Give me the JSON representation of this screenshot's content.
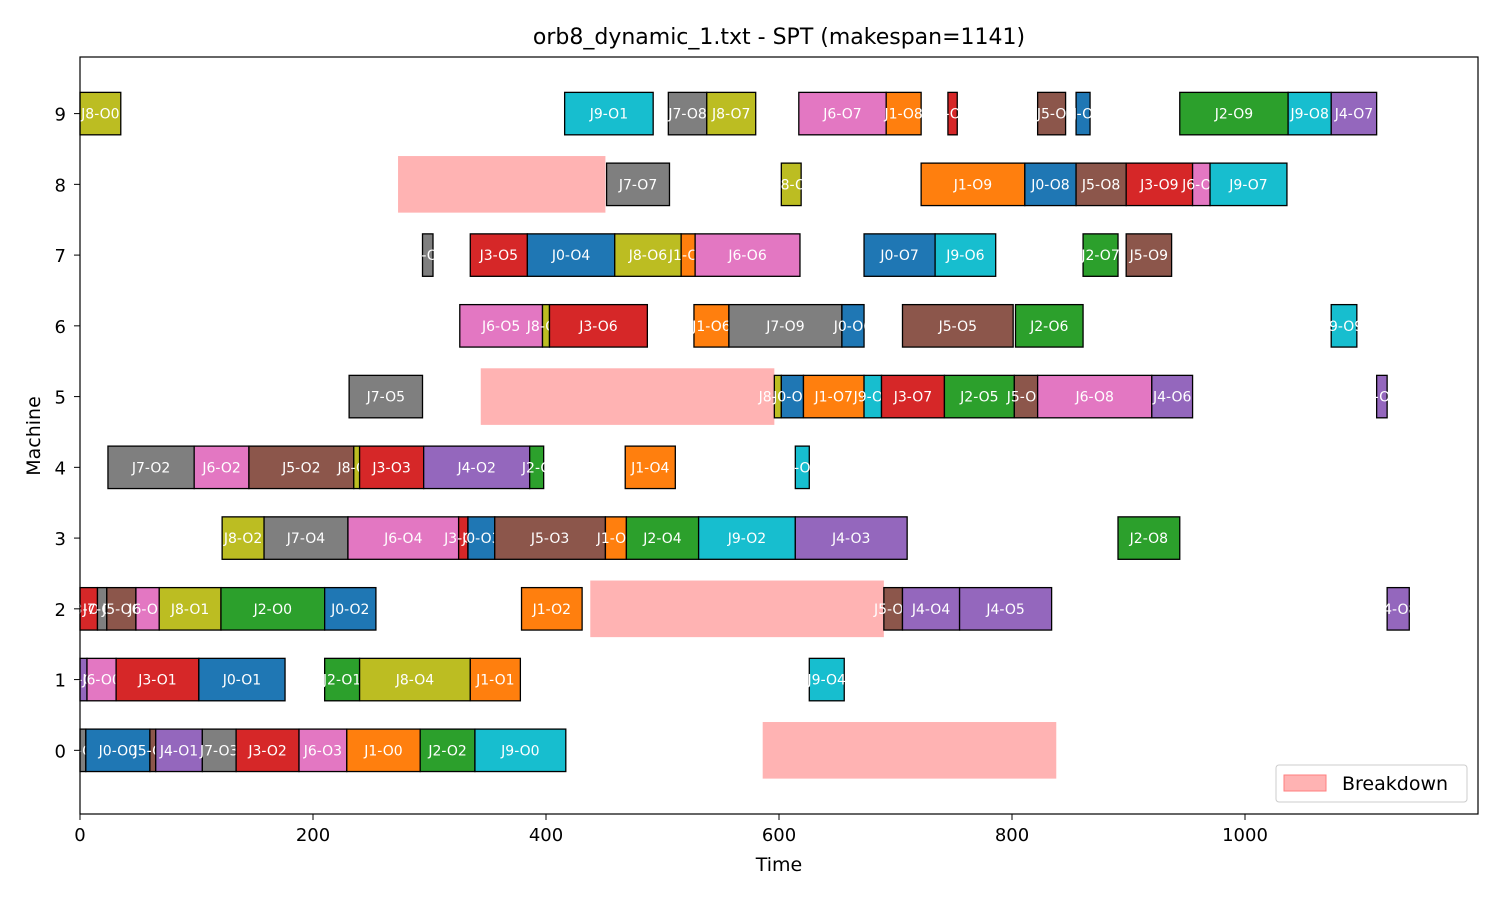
{
  "chart_data": {
    "type": "gantt",
    "title": "orb8_dynamic_1.txt - SPT (makespan=1141)",
    "xlabel": "Time",
    "ylabel": "Machine",
    "xlim": [
      0,
      1200
    ],
    "ylim": [
      -0.9,
      9.8
    ],
    "xticks": [
      0,
      200,
      400,
      600,
      800,
      1000
    ],
    "yticks": [
      0,
      1,
      2,
      3,
      4,
      5,
      6,
      7,
      8,
      9
    ],
    "legend": {
      "label": "Breakdown",
      "placement": "lower-right",
      "color": "#ffb3b3"
    },
    "job_colors": {
      "J0": "#1f77b4",
      "J1": "#ff7f0e",
      "J2": "#2ca02c",
      "J3": "#d62728",
      "J4": "#9467bd",
      "J5": "#8c564b",
      "J6": "#e377c2",
      "J7": "#7f7f7f",
      "J8": "#bcbd22",
      "J9": "#17becf"
    },
    "breakdowns": [
      {
        "machine": 8,
        "start": 273,
        "end": 451
      },
      {
        "machine": 5,
        "start": 344,
        "end": 596
      },
      {
        "machine": 2,
        "start": 438,
        "end": 690
      },
      {
        "machine": 0,
        "start": 586,
        "end": 838
      }
    ],
    "operations": [
      {
        "machine": 9,
        "job": "J8",
        "start": 0,
        "end": 35,
        "label": "J8-O0"
      },
      {
        "machine": 9,
        "job": "J9",
        "start": 416,
        "end": 492,
        "label": "J9-O1"
      },
      {
        "machine": 9,
        "job": "J7",
        "start": 505,
        "end": 538,
        "label": "J7-O8"
      },
      {
        "machine": 9,
        "job": "J8",
        "start": 538,
        "end": 580,
        "label": "J8-O7"
      },
      {
        "machine": 9,
        "job": "J6",
        "start": 617,
        "end": 692,
        "label": "J6-O7"
      },
      {
        "machine": 9,
        "job": "J1",
        "start": 692,
        "end": 722,
        "label": "J1-O8"
      },
      {
        "machine": 9,
        "job": "J3",
        "start": 745,
        "end": 753,
        "label": "-O"
      },
      {
        "machine": 9,
        "job": "J5",
        "start": 822,
        "end": 846,
        "label": "J5-O"
      },
      {
        "machine": 9,
        "job": "J0",
        "start": 855,
        "end": 867,
        "label": "J-O"
      },
      {
        "machine": 9,
        "job": "J2",
        "start": 944,
        "end": 1037,
        "label": "J2-O9"
      },
      {
        "machine": 9,
        "job": "J9",
        "start": 1037,
        "end": 1074,
        "label": "J9-O8"
      },
      {
        "machine": 9,
        "job": "J4",
        "start": 1074,
        "end": 1113,
        "label": "J4-O7"
      },
      {
        "machine": 8,
        "job": "J7",
        "start": 452,
        "end": 506,
        "label": "J7-O7"
      },
      {
        "machine": 8,
        "job": "J8",
        "start": 602,
        "end": 619,
        "label": "J8-O"
      },
      {
        "machine": 8,
        "job": "J1",
        "start": 722,
        "end": 811,
        "label": "J1-O9"
      },
      {
        "machine": 8,
        "job": "J0",
        "start": 811,
        "end": 855,
        "label": "J0-O8"
      },
      {
        "machine": 8,
        "job": "J5",
        "start": 855,
        "end": 898,
        "label": "J5-O8"
      },
      {
        "machine": 8,
        "job": "J3",
        "start": 898,
        "end": 955,
        "label": "J3-O9"
      },
      {
        "machine": 8,
        "job": "J6",
        "start": 955,
        "end": 970,
        "label": "J6-O9"
      },
      {
        "machine": 8,
        "job": "J9",
        "start": 970,
        "end": 1036,
        "label": "J9-O7"
      },
      {
        "machine": 7,
        "job": "J7",
        "start": 294,
        "end": 303,
        "label": "J-O"
      },
      {
        "machine": 7,
        "job": "J3",
        "start": 335,
        "end": 384,
        "label": "J3-O5"
      },
      {
        "machine": 7,
        "job": "J0",
        "start": 384,
        "end": 459,
        "label": "J0-O4"
      },
      {
        "machine": 7,
        "job": "J8",
        "start": 459,
        "end": 516,
        "label": "J8-O6"
      },
      {
        "machine": 7,
        "job": "J1",
        "start": 516,
        "end": 528,
        "label": "J1-O5"
      },
      {
        "machine": 7,
        "job": "J6",
        "start": 528,
        "end": 618,
        "label": "J6-O6"
      },
      {
        "machine": 7,
        "job": "J0",
        "start": 673,
        "end": 734,
        "label": "J0-O7"
      },
      {
        "machine": 7,
        "job": "J9",
        "start": 734,
        "end": 786,
        "label": "J9-O6"
      },
      {
        "machine": 7,
        "job": "J2",
        "start": 861,
        "end": 891,
        "label": "J2-O7"
      },
      {
        "machine": 7,
        "job": "J5",
        "start": 898,
        "end": 937,
        "label": "J5-O9"
      },
      {
        "machine": 6,
        "job": "J6",
        "start": 326,
        "end": 397,
        "label": "J6-O5"
      },
      {
        "machine": 6,
        "job": "J8",
        "start": 397,
        "end": 403,
        "label": "J8-O5"
      },
      {
        "machine": 6,
        "job": "J3",
        "start": 403,
        "end": 487,
        "label": "J3-O6"
      },
      {
        "machine": 6,
        "job": "J1",
        "start": 527,
        "end": 557,
        "label": "J1-O6"
      },
      {
        "machine": 6,
        "job": "J7",
        "start": 557,
        "end": 654,
        "label": "J7-O9"
      },
      {
        "machine": 6,
        "job": "J0",
        "start": 654,
        "end": 673,
        "label": "J0-O6"
      },
      {
        "machine": 6,
        "job": "J5",
        "start": 706,
        "end": 801,
        "label": "J5-O5"
      },
      {
        "machine": 6,
        "job": "J2",
        "start": 803,
        "end": 861,
        "label": "J2-O6"
      },
      {
        "machine": 6,
        "job": "J9",
        "start": 1074,
        "end": 1096,
        "label": "J9-O9"
      },
      {
        "machine": 5,
        "job": "J7",
        "start": 231,
        "end": 294,
        "label": "J7-O5"
      },
      {
        "machine": 5,
        "job": "J8",
        "start": 596,
        "end": 602,
        "label": "J8-O8"
      },
      {
        "machine": 5,
        "job": "J0",
        "start": 602,
        "end": 621,
        "label": "J0-O5"
      },
      {
        "machine": 5,
        "job": "J1",
        "start": 621,
        "end": 673,
        "label": "J1-O7"
      },
      {
        "machine": 5,
        "job": "J9",
        "start": 673,
        "end": 688,
        "label": "J9-O5"
      },
      {
        "machine": 5,
        "job": "J3",
        "start": 688,
        "end": 742,
        "label": "J3-O7"
      },
      {
        "machine": 5,
        "job": "J2",
        "start": 742,
        "end": 802,
        "label": "J2-O5"
      },
      {
        "machine": 5,
        "job": "J5",
        "start": 802,
        "end": 822,
        "label": "J5-O6"
      },
      {
        "machine": 5,
        "job": "J6",
        "start": 822,
        "end": 920,
        "label": "J6-O8"
      },
      {
        "machine": 5,
        "job": "J4",
        "start": 920,
        "end": 955,
        "label": "J4-O6"
      },
      {
        "machine": 5,
        "job": "J4",
        "start": 1113,
        "end": 1122,
        "label": "-O"
      },
      {
        "machine": 4,
        "job": "J7",
        "start": 24,
        "end": 98,
        "label": "J7-O2"
      },
      {
        "machine": 4,
        "job": "J6",
        "start": 98,
        "end": 145,
        "label": "J6-O2"
      },
      {
        "machine": 4,
        "job": "J5",
        "start": 145,
        "end": 235,
        "label": "J5-O2"
      },
      {
        "machine": 4,
        "job": "J8",
        "start": 235,
        "end": 240,
        "label": "J8-O3"
      },
      {
        "machine": 4,
        "job": "J3",
        "start": 240,
        "end": 295,
        "label": "J3-O3"
      },
      {
        "machine": 4,
        "job": "J4",
        "start": 295,
        "end": 386,
        "label": "J4-O2"
      },
      {
        "machine": 4,
        "job": "J2",
        "start": 386,
        "end": 398,
        "label": "J2-O"
      },
      {
        "machine": 4,
        "job": "J1",
        "start": 468,
        "end": 511,
        "label": "J1-O4"
      },
      {
        "machine": 4,
        "job": "J9",
        "start": 614,
        "end": 626,
        "label": "-O"
      },
      {
        "machine": 3,
        "job": "J8",
        "start": 122,
        "end": 158,
        "label": "J8-O2"
      },
      {
        "machine": 3,
        "job": "J7",
        "start": 158,
        "end": 230,
        "label": "J7-O4"
      },
      {
        "machine": 3,
        "job": "J6",
        "start": 230,
        "end": 325,
        "label": "J6-O4"
      },
      {
        "machine": 3,
        "job": "J3",
        "start": 325,
        "end": 333,
        "label": "J3-O4"
      },
      {
        "machine": 3,
        "job": "J0",
        "start": 333,
        "end": 356,
        "label": "J0-O3"
      },
      {
        "machine": 3,
        "job": "J5",
        "start": 356,
        "end": 451,
        "label": "J5-O3"
      },
      {
        "machine": 3,
        "job": "J1",
        "start": 451,
        "end": 469,
        "label": "J1-O3"
      },
      {
        "machine": 3,
        "job": "J2",
        "start": 469,
        "end": 531,
        "label": "J2-O4"
      },
      {
        "machine": 3,
        "job": "J9",
        "start": 531,
        "end": 614,
        "label": "J9-O2"
      },
      {
        "machine": 3,
        "job": "J4",
        "start": 614,
        "end": 710,
        "label": "J4-O3"
      },
      {
        "machine": 3,
        "job": "J2",
        "start": 891,
        "end": 944,
        "label": "J2-O8"
      },
      {
        "machine": 2,
        "job": "J3",
        "start": 0,
        "end": 15,
        "label": "J3-O0"
      },
      {
        "machine": 2,
        "job": "J7",
        "start": 15,
        "end": 23,
        "label": "J7-O0"
      },
      {
        "machine": 2,
        "job": "J5",
        "start": 23,
        "end": 48,
        "label": "J5-O0"
      },
      {
        "machine": 2,
        "job": "J6",
        "start": 48,
        "end": 68,
        "label": "J6-O1"
      },
      {
        "machine": 2,
        "job": "J8",
        "start": 68,
        "end": 121,
        "label": "J8-O1"
      },
      {
        "machine": 2,
        "job": "J2",
        "start": 121,
        "end": 210,
        "label": "J2-O0"
      },
      {
        "machine": 2,
        "job": "J0",
        "start": 210,
        "end": 254,
        "label": "J0-O2"
      },
      {
        "machine": 2,
        "job": "J1",
        "start": 379,
        "end": 431,
        "label": "J1-O2"
      },
      {
        "machine": 2,
        "job": "J5",
        "start": 690,
        "end": 706,
        "label": "J5-O4"
      },
      {
        "machine": 2,
        "job": "J4",
        "start": 706,
        "end": 755,
        "label": "J4-O4"
      },
      {
        "machine": 2,
        "job": "J4",
        "start": 755,
        "end": 834,
        "label": "J4-O5"
      },
      {
        "machine": 2,
        "job": "J4",
        "start": 1122,
        "end": 1141,
        "label": "J4-O8"
      },
      {
        "machine": 1,
        "job": "J4",
        "start": 0,
        "end": 6,
        "label": "J4-O0"
      },
      {
        "machine": 1,
        "job": "J6",
        "start": 6,
        "end": 31,
        "label": "J6-O0"
      },
      {
        "machine": 1,
        "job": "J3",
        "start": 31,
        "end": 102,
        "label": "J3-O1"
      },
      {
        "machine": 1,
        "job": "J0",
        "start": 102,
        "end": 176,
        "label": "J0-O1"
      },
      {
        "machine": 1,
        "job": "J2",
        "start": 210,
        "end": 240,
        "label": "J2-O1"
      },
      {
        "machine": 1,
        "job": "J8",
        "start": 240,
        "end": 335,
        "label": "J8-O4"
      },
      {
        "machine": 1,
        "job": "J1",
        "start": 335,
        "end": 378,
        "label": "J1-O1"
      },
      {
        "machine": 1,
        "job": "J9",
        "start": 626,
        "end": 656,
        "label": "J9-O4"
      },
      {
        "machine": 0,
        "job": "J7",
        "start": 0,
        "end": 5,
        "label": "J7-O0"
      },
      {
        "machine": 0,
        "job": "J0",
        "start": 5,
        "end": 60,
        "label": "J0-O0"
      },
      {
        "machine": 0,
        "job": "J5",
        "start": 60,
        "end": 65,
        "label": "J5-O1"
      },
      {
        "machine": 0,
        "job": "J4",
        "start": 65,
        "end": 105,
        "label": "J4-O1"
      },
      {
        "machine": 0,
        "job": "J7",
        "start": 105,
        "end": 134,
        "label": "J7-O3"
      },
      {
        "machine": 0,
        "job": "J3",
        "start": 134,
        "end": 188,
        "label": "J3-O2"
      },
      {
        "machine": 0,
        "job": "J6",
        "start": 188,
        "end": 229,
        "label": "J6-O3"
      },
      {
        "machine": 0,
        "job": "J1",
        "start": 229,
        "end": 292,
        "label": "J1-O0"
      },
      {
        "machine": 0,
        "job": "J2",
        "start": 292,
        "end": 339,
        "label": "J2-O2"
      },
      {
        "machine": 0,
        "job": "J9",
        "start": 339,
        "end": 417,
        "label": "J9-O0"
      }
    ]
  }
}
